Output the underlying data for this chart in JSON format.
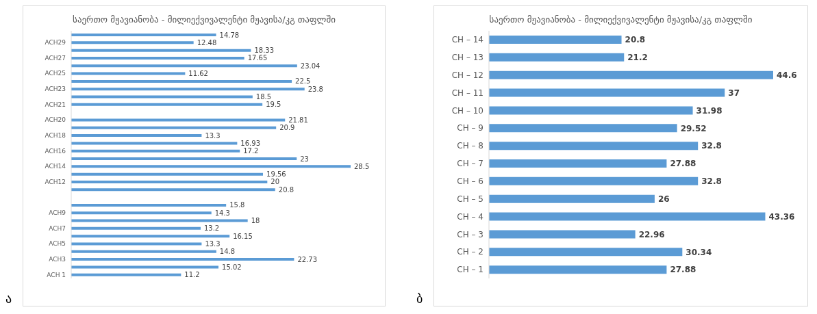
{
  "chart_data": [
    {
      "type": "bar",
      "orientation": "horizontal",
      "title": "საერთო მჟავიანობა - მილიექვივალენტი მჟავისა/კგ თაფლში",
      "categories": [
        null,
        "ACH29",
        null,
        "ACH27",
        null,
        "ACH25",
        null,
        "ACH23",
        null,
        "ACH21",
        null,
        "ACH20",
        null,
        "ACH18",
        null,
        "ACH16",
        null,
        "ACH14",
        null,
        "ACH12",
        null,
        null,
        null,
        "ACH9",
        null,
        "ACH7",
        null,
        "ACH5",
        null,
        "ACH3",
        null,
        "ACH 1"
      ],
      "values": [
        14.78,
        12.48,
        18.33,
        17.65,
        23.04,
        11.62,
        22.5,
        23.8,
        18.5,
        19.5,
        null,
        21.81,
        20.9,
        13.3,
        16.93,
        17.2,
        23,
        28.5,
        19.56,
        20,
        20.8,
        null,
        15.8,
        14.3,
        18,
        13.2,
        16.15,
        13.3,
        14.8,
        22.73,
        15.02,
        11.2
      ],
      "color": "#5b9bd5",
      "data_labels": true,
      "tick_labels": "y",
      "grid": false,
      "legend": false,
      "annotations": [
        "ა"
      ]
    },
    {
      "type": "bar",
      "orientation": "horizontal",
      "title": "საერთო მჟავიანობა - მილიექვივალენტი მჟავისა/კგ თაფლში",
      "categories": [
        "CH – 14",
        "CH – 13",
        "CH – 12",
        "CH – 11",
        "CH – 10",
        "CH – 9",
        "CH – 8",
        "CH – 7",
        "CH – 6",
        "CH – 5",
        "CH – 4",
        "CH – 3",
        "CH – 2",
        "CH – 1"
      ],
      "values": [
        20.8,
        21.2,
        44.6,
        37,
        31.98,
        29.52,
        32.8,
        27.88,
        32.8,
        26,
        43.36,
        22.96,
        30.34,
        27.88
      ],
      "color": "#5b9bd5",
      "data_labels": true,
      "tick_labels": "y",
      "grid": false,
      "legend": false,
      "annotations": [
        "ბ"
      ]
    }
  ]
}
